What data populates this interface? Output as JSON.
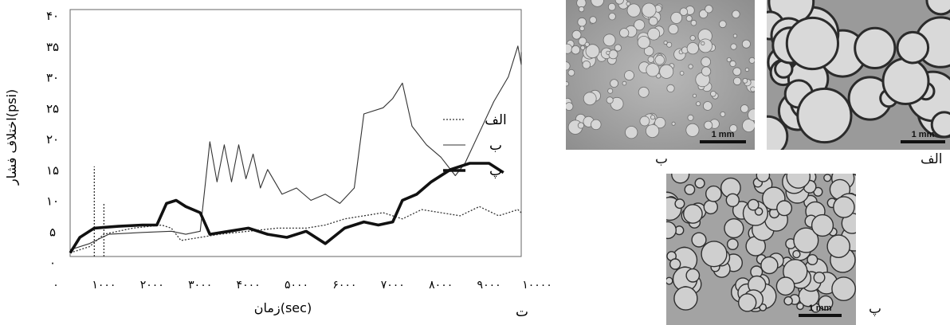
{
  "chart_data": {
    "type": "line",
    "xlabel": "زمان(sec)",
    "ylabel": "اختلاف فشار(psi)",
    "x_tick_labels": [
      "۰",
      "۱۰۰۰",
      "۲۰۰۰",
      "۳۰۰۰",
      "۴۰۰۰",
      "۵۰۰۰",
      "۶۰۰۰",
      "۷۰۰۰",
      "۸۰۰۰",
      "۹۰۰۰",
      "۱۰۰۰۰"
    ],
    "y_tick_labels": [
      "۰",
      "۵",
      "۱۰",
      "۱۵",
      "۲۰",
      "۲۵",
      "۳۰",
      "۳۵",
      "۴۰"
    ],
    "xlim": [
      0,
      10000
    ],
    "ylim": [
      0,
      40
    ],
    "grid": false,
    "legend_placement": "right",
    "series": [
      {
        "name": "الف",
        "style": "dotted",
        "points": [
          [
            300,
            1.5
          ],
          [
            700,
            2.5
          ],
          [
            1000,
            4.5
          ],
          [
            1600,
            5.5
          ],
          [
            2200,
            6
          ],
          [
            2400,
            5.5
          ],
          [
            2600,
            3.5
          ],
          [
            3000,
            4
          ],
          [
            3400,
            4.5
          ],
          [
            4000,
            5
          ],
          [
            4600,
            5.5
          ],
          [
            5200,
            5.5
          ],
          [
            5600,
            6
          ],
          [
            6000,
            7
          ],
          [
            6400,
            7.5
          ],
          [
            6800,
            8
          ],
          [
            7200,
            7
          ],
          [
            7600,
            8.5
          ],
          [
            8000,
            8
          ],
          [
            8400,
            7.5
          ],
          [
            8800,
            9
          ],
          [
            9200,
            7.5
          ],
          [
            9600,
            8.5
          ],
          [
            10000,
            8
          ]
        ],
        "spikes": [
          [
            800,
            15.5
          ],
          [
            1000,
            9.5
          ]
        ]
      },
      {
        "name": "ب",
        "style": "thin",
        "points": [
          [
            300,
            2
          ],
          [
            700,
            3
          ],
          [
            1100,
            4.5
          ],
          [
            1800,
            4.8
          ],
          [
            2400,
            5
          ],
          [
            2700,
            4.5
          ],
          [
            3000,
            5
          ],
          [
            3200,
            19.5
          ],
          [
            3350,
            13
          ],
          [
            3500,
            19
          ],
          [
            3650,
            13
          ],
          [
            3800,
            19
          ],
          [
            3950,
            13.5
          ],
          [
            4100,
            17.5
          ],
          [
            4250,
            12
          ],
          [
            4400,
            15
          ],
          [
            4700,
            11
          ],
          [
            5000,
            12
          ],
          [
            5300,
            10
          ],
          [
            5600,
            11
          ],
          [
            5900,
            9.5
          ],
          [
            6200,
            12
          ],
          [
            6400,
            24
          ],
          [
            6800,
            25
          ],
          [
            7000,
            26.5
          ],
          [
            7200,
            29
          ],
          [
            7400,
            22
          ],
          [
            7700,
            19
          ],
          [
            8000,
            17
          ],
          [
            8300,
            14
          ],
          [
            8500,
            16
          ],
          [
            8800,
            21
          ],
          [
            9100,
            26
          ],
          [
            9400,
            30
          ],
          [
            9600,
            35
          ],
          [
            9800,
            32
          ],
          [
            10000,
            34
          ]
        ]
      },
      {
        "name": "پ",
        "style": "thick",
        "points": [
          [
            300,
            1.5
          ],
          [
            500,
            4
          ],
          [
            800,
            5.5
          ],
          [
            1300,
            5.8
          ],
          [
            1800,
            6
          ],
          [
            2100,
            6
          ],
          [
            2300,
            9.5
          ],
          [
            2500,
            10
          ],
          [
            2700,
            9
          ],
          [
            3000,
            8
          ],
          [
            3200,
            4.5
          ],
          [
            3600,
            5
          ],
          [
            4000,
            5.5
          ],
          [
            4400,
            4.5
          ],
          [
            4800,
            4
          ],
          [
            5200,
            5
          ],
          [
            5600,
            3
          ],
          [
            6000,
            5.5
          ],
          [
            6400,
            6.5
          ],
          [
            6700,
            6
          ],
          [
            7000,
            6.5
          ],
          [
            7200,
            10
          ],
          [
            7500,
            11
          ],
          [
            7800,
            13
          ],
          [
            8200,
            15
          ],
          [
            8600,
            16
          ],
          [
            9000,
            16
          ],
          [
            9300,
            14.5
          ]
        ]
      }
    ]
  },
  "figure": {
    "panel_t_label": "ت",
    "panels": [
      {
        "label": "الف",
        "scale_text": "1 mm"
      },
      {
        "label": "ب",
        "scale_text": "1 mm"
      },
      {
        "label": "پ",
        "scale_text": "1 mm"
      }
    ]
  }
}
